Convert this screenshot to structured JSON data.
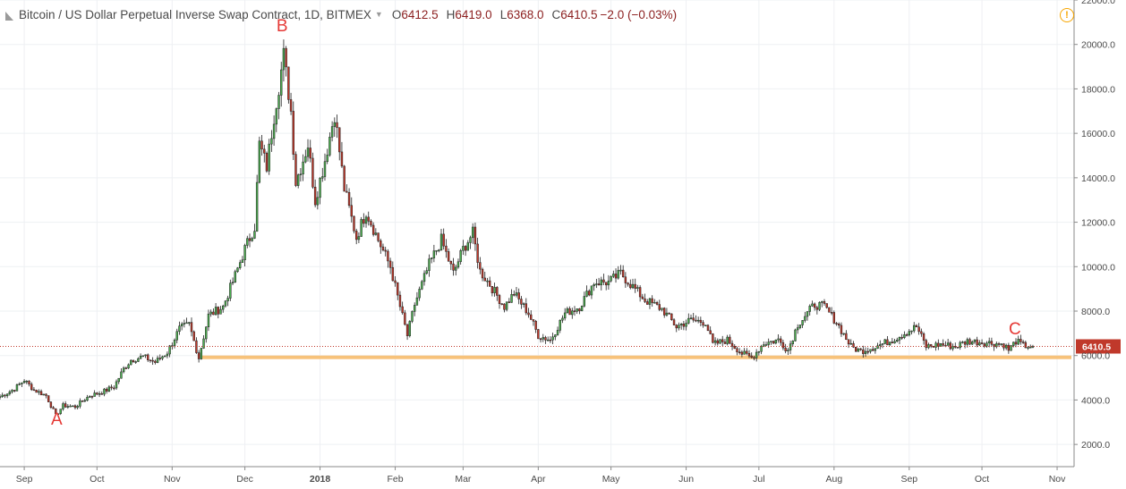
{
  "header": {
    "title": "Bitcoin / US Dollar Perpetual Inverse Swap Contract, 1D, BITMEX",
    "ohlc": [
      {
        "key": "O",
        "value": "6412.5"
      },
      {
        "key": "H",
        "value": "6419.0"
      },
      {
        "key": "L",
        "value": "6368.0"
      },
      {
        "key": "C",
        "value": "6410.5"
      }
    ],
    "change": "−2.0 (−0.03%)",
    "alert_icon": "!"
  },
  "colors": {
    "up_body": "#4caf50",
    "down_body": "#c0392b",
    "outline": "#1e1e1e",
    "support_band": "#f7c27a",
    "price_line": "#c0392b",
    "annotation": "#e53935"
  },
  "chart_data": {
    "type": "candlestick",
    "y_ticks": [
      "2000.0",
      "4000.0",
      "6000.0",
      "8000.0",
      "10000.0",
      "12000.0",
      "14000.0",
      "16000.0",
      "18000.0",
      "20000.0",
      "22000.0"
    ],
    "x_ticks": [
      {
        "label": "Sep",
        "date": "2017-09-01"
      },
      {
        "label": "Oct",
        "date": "2017-10-01"
      },
      {
        "label": "Nov",
        "date": "2017-11-01"
      },
      {
        "label": "Dec",
        "date": "2017-12-01"
      },
      {
        "label": "2018",
        "date": "2018-01-01",
        "bold": true
      },
      {
        "label": "Feb",
        "date": "2018-02-01"
      },
      {
        "label": "Mar",
        "date": "2018-03-01"
      },
      {
        "label": "Apr",
        "date": "2018-04-01"
      },
      {
        "label": "May",
        "date": "2018-05-01"
      },
      {
        "label": "Jun",
        "date": "2018-06-01"
      },
      {
        "label": "Jul",
        "date": "2018-07-01"
      },
      {
        "label": "Aug",
        "date": "2018-08-01"
      },
      {
        "label": "Sep",
        "date": "2018-09-01"
      },
      {
        "label": "Oct",
        "date": "2018-10-01"
      },
      {
        "label": "Nov",
        "date": "2018-11-01"
      }
    ],
    "x_range": [
      "2017-08-22",
      "2018-11-08"
    ],
    "y_range": [
      1000,
      22000
    ],
    "last_price": "6410.5",
    "support_level": [
      5900,
      6000
    ],
    "support_start": "2017-11-13",
    "close_path": [
      [
        "2017-08-22",
        4150
      ],
      [
        "2017-08-28",
        4500
      ],
      [
        "2017-09-01",
        4900
      ],
      [
        "2017-09-05",
        4450
      ],
      [
        "2017-09-10",
        4200
      ],
      [
        "2017-09-14",
        3300
      ],
      [
        "2017-09-17",
        3750
      ],
      [
        "2017-09-22",
        3700
      ],
      [
        "2017-09-28",
        4200
      ],
      [
        "2017-10-03",
        4350
      ],
      [
        "2017-10-08",
        4600
      ],
      [
        "2017-10-12",
        5400
      ],
      [
        "2017-10-15",
        5800
      ],
      [
        "2017-10-20",
        5950
      ],
      [
        "2017-10-25",
        5700
      ],
      [
        "2017-10-30",
        6150
      ],
      [
        "2017-11-04",
        7200
      ],
      [
        "2017-11-08",
        7400
      ],
      [
        "2017-11-12",
        5900
      ],
      [
        "2017-11-16",
        7800
      ],
      [
        "2017-11-22",
        8200
      ],
      [
        "2017-11-27",
        9600
      ],
      [
        "2017-12-01",
        10800
      ],
      [
        "2017-12-05",
        11800
      ],
      [
        "2017-12-07",
        15500
      ],
      [
        "2017-12-10",
        14500
      ],
      [
        "2017-12-13",
        16800
      ],
      [
        "2017-12-17",
        19500
      ],
      [
        "2017-12-20",
        17000
      ],
      [
        "2017-12-22",
        13800
      ],
      [
        "2017-12-27",
        15500
      ],
      [
        "2017-12-30",
        13000
      ],
      [
        "2018-01-03",
        14800
      ],
      [
        "2018-01-07",
        16900
      ],
      [
        "2018-01-11",
        13500
      ],
      [
        "2018-01-16",
        11300
      ],
      [
        "2018-01-20",
        12500
      ],
      [
        "2018-01-25",
        11200
      ],
      [
        "2018-01-30",
        10000
      ],
      [
        "2018-02-03",
        8200
      ],
      [
        "2018-02-06",
        6900
      ],
      [
        "2018-02-09",
        8300
      ],
      [
        "2018-02-15",
        10100
      ],
      [
        "2018-02-20",
        11200
      ],
      [
        "2018-02-25",
        9700
      ],
      [
        "2018-03-01",
        10800
      ],
      [
        "2018-03-05",
        11500
      ],
      [
        "2018-03-08",
        9800
      ],
      [
        "2018-03-12",
        9200
      ],
      [
        "2018-03-18",
        8200
      ],
      [
        "2018-03-22",
        8800
      ],
      [
        "2018-03-28",
        7900
      ],
      [
        "2018-04-01",
        6900
      ],
      [
        "2018-04-06",
        6700
      ],
      [
        "2018-04-12",
        7900
      ],
      [
        "2018-04-18",
        8200
      ],
      [
        "2018-04-24",
        9300
      ],
      [
        "2018-04-30",
        9300
      ],
      [
        "2018-05-05",
        9700
      ],
      [
        "2018-05-10",
        9100
      ],
      [
        "2018-05-15",
        8500
      ],
      [
        "2018-05-22",
        8100
      ],
      [
        "2018-05-28",
        7300
      ],
      [
        "2018-06-03",
        7600
      ],
      [
        "2018-06-09",
        7500
      ],
      [
        "2018-06-12",
        6500
      ],
      [
        "2018-06-18",
        6700
      ],
      [
        "2018-06-24",
        6100
      ],
      [
        "2018-06-28",
        5900
      ],
      [
        "2018-07-03",
        6550
      ],
      [
        "2018-07-09",
        6700
      ],
      [
        "2018-07-13",
        6250
      ],
      [
        "2018-07-17",
        7400
      ],
      [
        "2018-07-24",
        8300
      ],
      [
        "2018-07-28",
        8200
      ],
      [
        "2018-08-02",
        7500
      ],
      [
        "2018-08-08",
        6400
      ],
      [
        "2018-08-12",
        6200
      ],
      [
        "2018-08-18",
        6400
      ],
      [
        "2018-08-25",
        6700
      ],
      [
        "2018-08-30",
        7000
      ],
      [
        "2018-09-04",
        7300
      ],
      [
        "2018-09-08",
        6400
      ],
      [
        "2018-09-14",
        6500
      ],
      [
        "2018-09-20",
        6400
      ],
      [
        "2018-09-25",
        6650
      ],
      [
        "2018-10-01",
        6600
      ],
      [
        "2018-10-06",
        6550
      ],
      [
        "2018-10-10",
        6500
      ],
      [
        "2018-10-12",
        6250
      ],
      [
        "2018-10-15",
        6650
      ],
      [
        "2018-10-18",
        6450
      ],
      [
        "2018-10-22",
        6410
      ]
    ],
    "annotations": [
      {
        "label": "A",
        "date": "2017-09-15",
        "price": 2900
      },
      {
        "label": "B",
        "date": "2017-12-17",
        "price": 20600
      },
      {
        "label": "C",
        "date": "2018-10-15",
        "price": 6950
      }
    ]
  }
}
